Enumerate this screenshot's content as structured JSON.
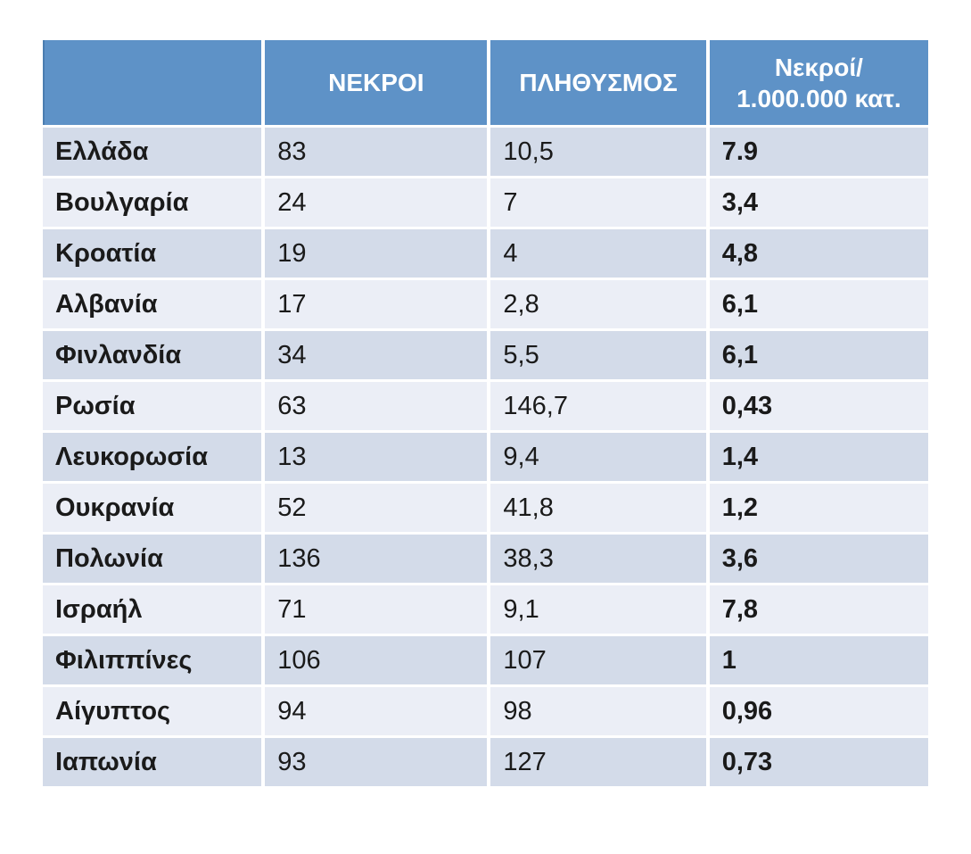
{
  "colors": {
    "header_bg": "#5e92c7",
    "header_border_left": "#4b7db0",
    "header_text": "#ffffff",
    "row_band_dark": "#d3dbe9",
    "row_band_light": "#ebeef6",
    "cell_text": "#1a1a1a",
    "page_bg": "#ffffff"
  },
  "chart_data": {
    "type": "table",
    "title": "",
    "columns": [
      "",
      "ΝΕΚΡΟΙ",
      "ΠΛΗΘΥΣΜΟΣ",
      "Νεκροί/\n1.000.000 κατ."
    ],
    "column_roles": [
      "country",
      "deaths",
      "population_millions",
      "deaths_per_million"
    ],
    "rows": [
      [
        "Ελλάδα",
        "83",
        "10,5",
        "7.9"
      ],
      [
        "Βουλγαρία",
        "24",
        "7",
        "3,4"
      ],
      [
        "Κροατία",
        "19",
        "4",
        "4,8"
      ],
      [
        "Αλβανία",
        "17",
        "2,8",
        "6,1"
      ],
      [
        "Φινλανδία",
        "34",
        "5,5",
        "6,1"
      ],
      [
        "Ρωσία",
        "63",
        "146,7",
        "0,43"
      ],
      [
        "Λευκορωσία",
        "13",
        "9,4",
        "1,4"
      ],
      [
        "Ουκρανία",
        "52",
        "41,8",
        "1,2"
      ],
      [
        "Πολωνία",
        "136",
        "38,3",
        "3,6"
      ],
      [
        "Ισραήλ",
        "71",
        "9,1",
        "7,8"
      ],
      [
        "Φιλιππίνες",
        "106",
        "107",
        "1"
      ],
      [
        "Αίγυπτος",
        "94",
        "98",
        "0,96"
      ],
      [
        "Ιαπωνία",
        "93",
        "127",
        "0,73"
      ]
    ],
    "layout": {
      "banded_rows": true,
      "first_row_band": "dark",
      "header_alignment": "center",
      "cell_alignment": "left",
      "bold_columns": [
        "country",
        "deaths_per_million"
      ]
    }
  }
}
